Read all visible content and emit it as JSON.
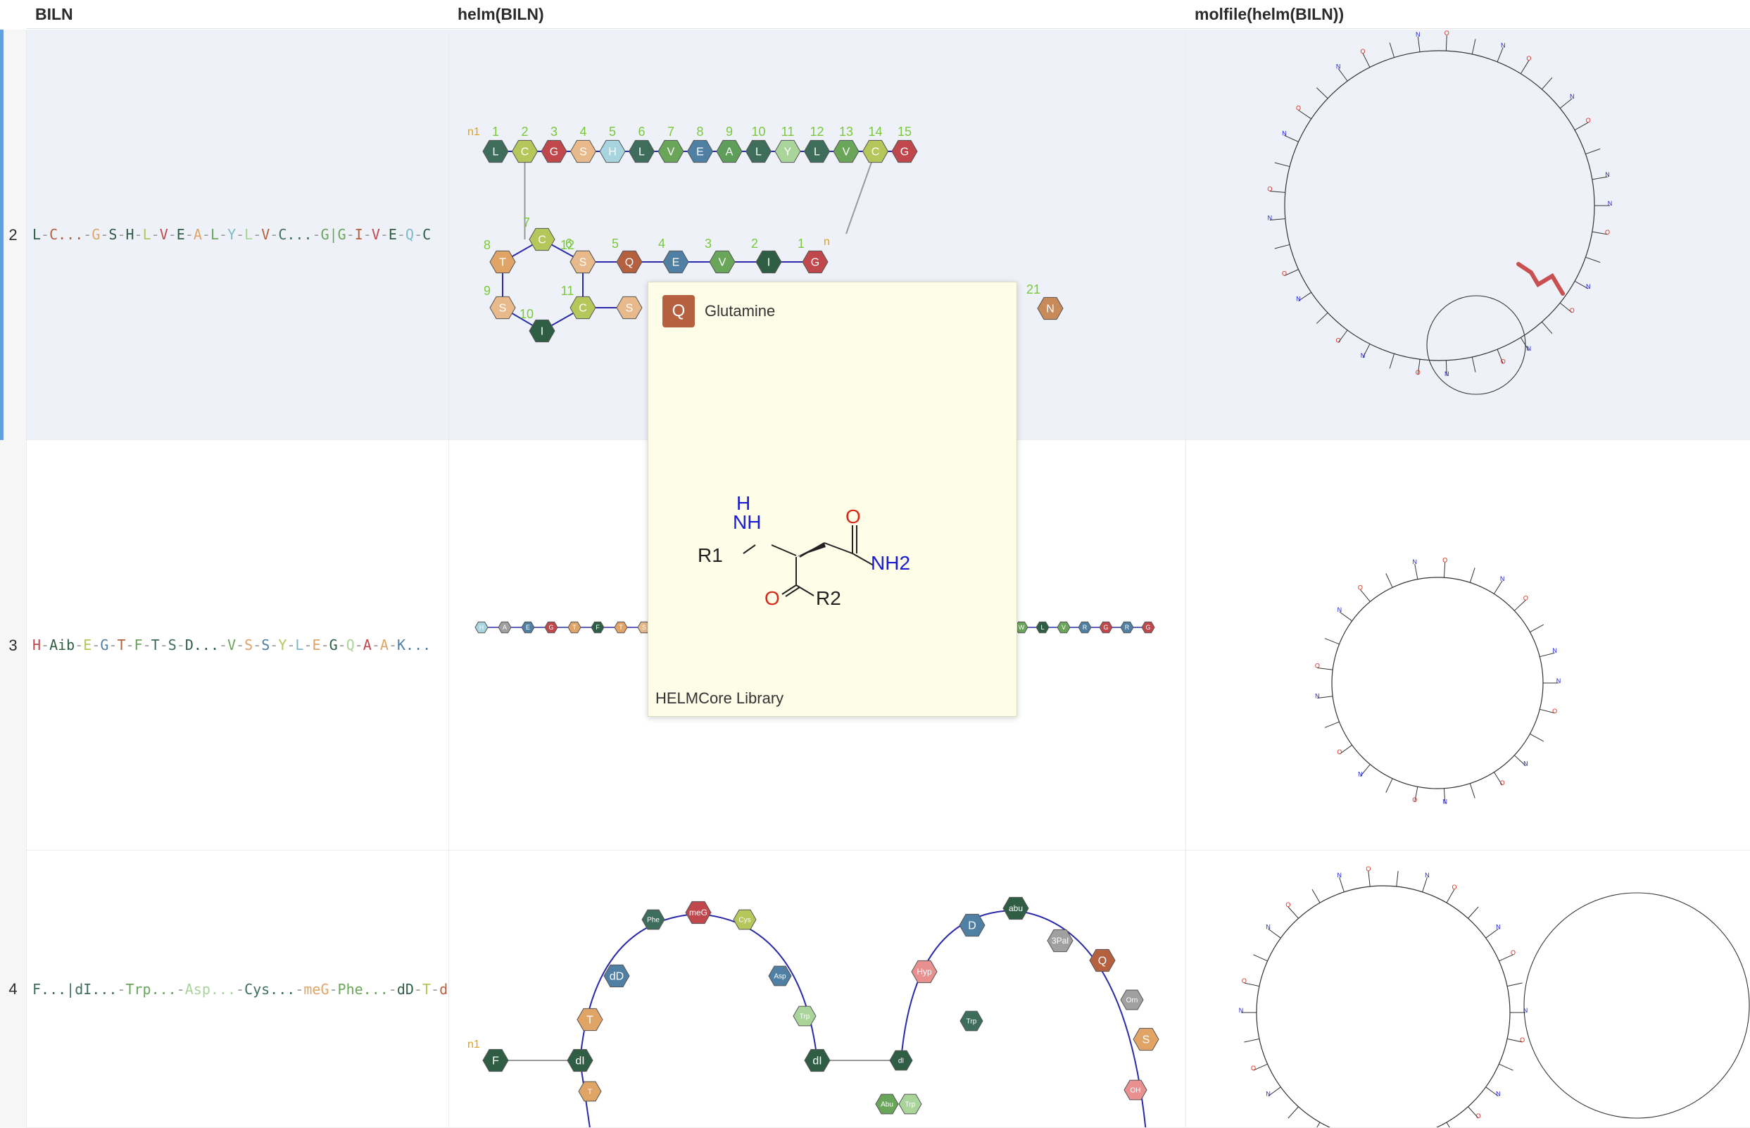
{
  "columns": {
    "biln": "BILN",
    "helm": "helm(BILN)",
    "molfile": "molfile(helm(BILN))"
  },
  "rows": [
    {
      "num": "2",
      "biln": "L-C...-G-S-H-L-V-E-A-L-Y-L-V-C...-G|G-I-V-E-Q-C"
    },
    {
      "num": "3",
      "biln": "H-Aib-E-G-T-F-T-S-D...-V-S-S-Y-L-E-G-Q-A-A-K..."
    },
    {
      "num": "4",
      "biln": "F...|dI...-Trp...-Asp...-Cys...-meG-Phe...-dD-T-dI...-T-c"
    }
  ],
  "helm_row2": {
    "top_chain": [
      {
        "n": "1",
        "l": "L",
        "c": "#3e6d5c"
      },
      {
        "n": "2",
        "l": "C",
        "c": "#b5c65a"
      },
      {
        "n": "3",
        "l": "G",
        "c": "#c0474b"
      },
      {
        "n": "4",
        "l": "S",
        "c": "#e8b98a"
      },
      {
        "n": "5",
        "l": "H",
        "c": "#a8d4e0"
      },
      {
        "n": "6",
        "l": "L",
        "c": "#3e6d5c"
      },
      {
        "n": "7",
        "l": "V",
        "c": "#6aa65a"
      },
      {
        "n": "8",
        "l": "E",
        "c": "#4f7fa3"
      },
      {
        "n": "9",
        "l": "A",
        "c": "#5f9e5a"
      },
      {
        "n": "10",
        "l": "L",
        "c": "#3e6d5c"
      },
      {
        "n": "11",
        "l": "Y",
        "c": "#a9d49a"
      },
      {
        "n": "12",
        "l": "L",
        "c": "#3e6d5c"
      },
      {
        "n": "13",
        "l": "V",
        "c": "#6aa65a"
      },
      {
        "n": "14",
        "l": "C",
        "c": "#b5c65a"
      },
      {
        "n": "15",
        "l": "G",
        "c": "#c0474b"
      }
    ],
    "mid_chain": [
      {
        "n": "6",
        "l": "C",
        "c": "#b5c65a"
      },
      {
        "n": "5",
        "l": "Q",
        "c": "#b5603f"
      },
      {
        "n": "4",
        "l": "E",
        "c": "#4f7fa3"
      },
      {
        "n": "3",
        "l": "V",
        "c": "#6aa65a"
      },
      {
        "n": "2",
        "l": "I",
        "c": "#2f5e45"
      },
      {
        "n": "1",
        "l": "G",
        "c": "#c0474b"
      }
    ],
    "ring": [
      {
        "n": "7",
        "l": "C",
        "c": "#b5c65a"
      },
      {
        "n": "8",
        "l": "T",
        "c": "#e0a566"
      },
      {
        "n": "9",
        "l": "S",
        "c": "#e8b98a"
      },
      {
        "n": "10",
        "l": "I",
        "c": "#2f5e45"
      },
      {
        "n": "11",
        "l": "C",
        "c": "#b5c65a"
      },
      {
        "n": "12",
        "l": "S",
        "c": "#e8b98a"
      }
    ],
    "tail": {
      "n": "21",
      "l": "N",
      "c": "#c98a5a"
    },
    "n_label": "n",
    "n_label_one": "n1"
  },
  "helm_row4": {
    "nodes": [
      {
        "l": "F",
        "c": "#2f5e45"
      },
      {
        "l": "dI",
        "c": "#2f5e45"
      },
      {
        "l": "dD",
        "c": "#4f7fa3"
      },
      {
        "l": "meG",
        "c": "#c0474b"
      },
      {
        "l": "Hyp",
        "c": "#e89090"
      },
      {
        "l": "D",
        "c": "#4f7fa3"
      },
      {
        "l": "Q",
        "c": "#b5603f"
      },
      {
        "l": "S",
        "c": "#e0a566"
      },
      {
        "l": "T",
        "c": "#e0a566"
      },
      {
        "l": "dI",
        "c": "#2f5e45"
      },
      {
        "l": "3Pal",
        "c": "#a0a0a0"
      },
      {
        "l": "abu",
        "c": "#2f5e45"
      }
    ]
  },
  "tooltip": {
    "code": "Q",
    "name": "Glutamine",
    "library": "HELMCore Library",
    "struct": {
      "r1": "R1",
      "r2": "R2",
      "nh": "NH",
      "nh2": "NH2",
      "o1": "O",
      "o2": "O",
      "h": "H"
    }
  },
  "colors": {
    "accent": "#64a0e0",
    "selection": "#eef2f8",
    "bond": "#2a2aa8"
  }
}
